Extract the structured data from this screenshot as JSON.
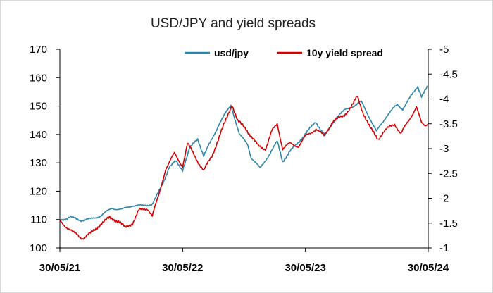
{
  "chart_data": {
    "type": "line",
    "title": "USD/JPY and yield spreads",
    "xlabel": "",
    "ylabel": "",
    "x_ticks": [
      "30/05/21",
      "30/05/22",
      "30/05/23",
      "30/05/24"
    ],
    "y_left": {
      "min": 100,
      "max": 170,
      "ticks": [
        100,
        110,
        120,
        130,
        140,
        150,
        160,
        170
      ]
    },
    "y_right": {
      "min": -1,
      "max": -5,
      "inverted": true,
      "ticks": [
        "-1",
        "-1.5",
        "-2",
        "-2.5",
        "-3",
        "-3.5",
        "-4",
        "-4.5",
        "-5"
      ]
    },
    "legend_position": "top",
    "grid": false,
    "series": [
      {
        "name": "usd/jpy",
        "axis": "left",
        "color": "#2E86AB",
        "points": [
          [
            "2021-05-30",
            109.8
          ],
          [
            "2021-07-01",
            110.8
          ],
          [
            "2021-08-01",
            109.8
          ],
          [
            "2021-09-01",
            110.2
          ],
          [
            "2021-10-01",
            111.5
          ],
          [
            "2021-11-01",
            114.0
          ],
          [
            "2021-12-01",
            113.5
          ],
          [
            "2022-01-01",
            115.0
          ],
          [
            "2022-02-01",
            114.8
          ],
          [
            "2022-03-01",
            115.5
          ],
          [
            "2022-03-15",
            118.5
          ],
          [
            "2022-04-01",
            122.5
          ],
          [
            "2022-04-20",
            128.5
          ],
          [
            "2022-05-10",
            130.5
          ],
          [
            "2022-05-30",
            127.5
          ],
          [
            "2022-06-20",
            135.0
          ],
          [
            "2022-07-14",
            138.5
          ],
          [
            "2022-08-01",
            132.5
          ],
          [
            "2022-08-20",
            137.0
          ],
          [
            "2022-09-15",
            143.5
          ],
          [
            "2022-10-21",
            150.5
          ],
          [
            "2022-11-15",
            140.0
          ],
          [
            "2022-12-10",
            136.5
          ],
          [
            "2022-12-20",
            132.0
          ],
          [
            "2023-01-16",
            128.0
          ],
          [
            "2023-02-15",
            133.5
          ],
          [
            "2023-03-08",
            137.5
          ],
          [
            "2023-03-24",
            130.5
          ],
          [
            "2023-04-15",
            134.0
          ],
          [
            "2023-05-30",
            140.0
          ],
          [
            "2023-06-30",
            144.5
          ],
          [
            "2023-07-28",
            139.5
          ],
          [
            "2023-08-30",
            146.0
          ],
          [
            "2023-09-30",
            149.0
          ],
          [
            "2023-10-30",
            150.5
          ],
          [
            "2023-11-13",
            151.5
          ],
          [
            "2023-12-01",
            147.5
          ],
          [
            "2023-12-28",
            141.0
          ],
          [
            "2024-01-30",
            147.0
          ],
          [
            "2024-02-28",
            150.5
          ],
          [
            "2024-03-15",
            149.0
          ],
          [
            "2024-04-29",
            157.0
          ],
          [
            "2024-05-10",
            153.5
          ],
          [
            "2024-05-30",
            157.0
          ]
        ]
      },
      {
        "name": "10y yield spread",
        "axis": "right",
        "color": "#D40000",
        "points": [
          [
            "2021-05-30",
            -1.55
          ],
          [
            "2021-06-15",
            -1.45
          ],
          [
            "2021-07-10",
            -1.3
          ],
          [
            "2021-08-05",
            -1.2
          ],
          [
            "2021-09-01",
            -1.3
          ],
          [
            "2021-10-01",
            -1.5
          ],
          [
            "2021-10-25",
            -1.6
          ],
          [
            "2021-11-20",
            -1.55
          ],
          [
            "2021-12-10",
            -1.4
          ],
          [
            "2022-01-01",
            -1.5
          ],
          [
            "2022-01-20",
            -1.75
          ],
          [
            "2022-02-15",
            -1.8
          ],
          [
            "2022-03-01",
            -1.65
          ],
          [
            "2022-03-20",
            -2.05
          ],
          [
            "2022-04-10",
            -2.6
          ],
          [
            "2022-05-06",
            -2.9
          ],
          [
            "2022-05-30",
            -2.65
          ],
          [
            "2022-06-14",
            -3.1
          ],
          [
            "2022-07-10",
            -2.8
          ],
          [
            "2022-08-01",
            -2.55
          ],
          [
            "2022-08-25",
            -2.85
          ],
          [
            "2022-09-26",
            -3.4
          ],
          [
            "2022-10-24",
            -3.9
          ],
          [
            "2022-11-10",
            -3.55
          ],
          [
            "2022-12-05",
            -3.4
          ],
          [
            "2023-01-10",
            -3.05
          ],
          [
            "2023-02-01",
            -3.0
          ],
          [
            "2023-02-20",
            -3.35
          ],
          [
            "2023-03-08",
            -3.5
          ],
          [
            "2023-03-24",
            -3.0
          ],
          [
            "2023-04-15",
            -3.1
          ],
          [
            "2023-05-10",
            -3.05
          ],
          [
            "2023-06-01",
            -3.25
          ],
          [
            "2023-07-01",
            -3.4
          ],
          [
            "2023-07-25",
            -3.25
          ],
          [
            "2023-08-20",
            -3.55
          ],
          [
            "2023-09-20",
            -3.65
          ],
          [
            "2023-10-20",
            -3.9
          ],
          [
            "2023-11-01",
            -4.05
          ],
          [
            "2023-11-20",
            -3.7
          ],
          [
            "2023-12-10",
            -3.4
          ],
          [
            "2024-01-02",
            -3.2
          ],
          [
            "2024-01-20",
            -3.35
          ],
          [
            "2024-02-20",
            -3.5
          ],
          [
            "2024-03-10",
            -3.3
          ],
          [
            "2024-04-01",
            -3.55
          ],
          [
            "2024-04-25",
            -3.85
          ],
          [
            "2024-05-10",
            -3.5
          ],
          [
            "2024-05-20",
            -3.45
          ],
          [
            "2024-05-30",
            -3.5
          ]
        ]
      }
    ]
  }
}
